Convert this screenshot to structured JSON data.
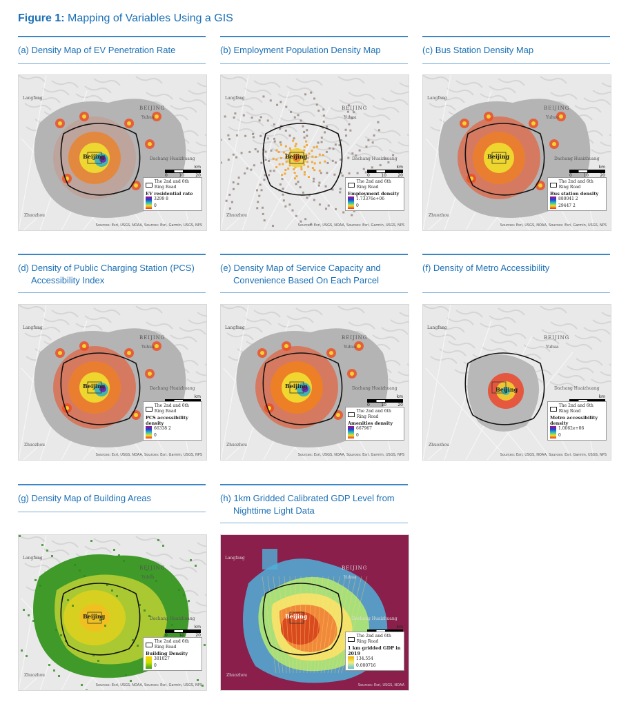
{
  "figure": {
    "label": "Figure 1:",
    "title": " Mapping of Variables Using a GIS"
  },
  "panels": [
    {
      "id": "a",
      "caption_line1": "(a) Density Map of EV Penetration Rate",
      "caption_line2": "",
      "ring_road": "The 2nd and 6th Ring Road",
      "legend_title": "EV residential rate",
      "legend_high": "3299 8",
      "legend_low": "0",
      "credit": "Sources: Esri, USGS, NOAA, Sources: Esri, Garmin, USGS, NPS"
    },
    {
      "id": "b",
      "caption_line1": "(b) Employment Population Density Map",
      "caption_line2": "",
      "ring_road": "The 2nd and 6th Ring Road",
      "legend_title": "Employment density",
      "legend_high": "1.73376e+06",
      "legend_low": "0",
      "credit": "Sources: Esri, USGS, NOAA, Sources: Esri, Garmin, USGS, NPS"
    },
    {
      "id": "c",
      "caption_line1": "(c) Bus Station Density Map",
      "caption_line2": "",
      "ring_road": "The 2nd and 6th Ring Road",
      "legend_title": "Bus station density",
      "legend_high": "880041 2",
      "legend_low": "29447 2",
      "credit": "Sources: Esri, USGS, NOAA, Sources: Esri, Garmin, USGS, NPS"
    },
    {
      "id": "d",
      "caption_line1": "(d) Density of Public Charging Station (PCS)",
      "caption_line2": "Accessibility Index",
      "ring_road": "The 2nd and 6th Ring Road",
      "legend_title": "PCS accessibility density",
      "legend_high": "66338 2",
      "legend_low": "0",
      "credit": "Sources: Esri, USGS, NOAA, Sources: Esri, Garmin, USGS, NPS"
    },
    {
      "id": "e",
      "caption_line1": "(e) Density Map of Service Capacity and",
      "caption_line2": "Convenience Based On Each Parcel",
      "ring_road": "The 2nd and 6th Ring Road",
      "legend_title": "Amenities density",
      "legend_high": "667967",
      "legend_low": "0",
      "credit": "Sources: Esri, USGS, NOAA, Sources: Esri, Garmin, USGS, NPS"
    },
    {
      "id": "f",
      "caption_line1": "(f) Density of Metro Accessibility",
      "caption_line2": "",
      "ring_road": "The 2nd and 6th Ring Road",
      "legend_title": "Metro accessibility density",
      "legend_high": "1.0062e+06",
      "legend_low": "0",
      "credit": "Sources: Esri, USGS, NOAA, Sources: Esri, Garmin, USGS, NPS"
    },
    {
      "id": "g",
      "caption_line1": "(g) Density Map of Building Areas",
      "caption_line2": "",
      "ring_road": "The 2nd and 6th Ring Road",
      "legend_title": "Building Density",
      "legend_high": "381027",
      "legend_low": "0",
      "credit": "Sources: Esri, USGS, NOAA, Sources: Esri, Garmin, USGS, NPS"
    },
    {
      "id": "h",
      "caption_line1": "(h) 1km Gridded Calibrated GDP Level from",
      "caption_line2": "Nighttime Light Data",
      "ring_road": "The 2nd and 6th Ring Road",
      "legend_title": "1 km gridded GDP in 2019",
      "legend_high": "134.554",
      "legend_low": "0.000716",
      "credit": "Sources: Esri, USGS, NOAA"
    }
  ],
  "map_labels": {
    "city": "Beijing",
    "region": "BEIJING",
    "place1": "Yuhua",
    "place2": "Dachang Huaizhuang",
    "place3": "Langfang",
    "place4": "Zhuozhou",
    "scale_unit": "km",
    "scale_0": "0",
    "scale_10": "10",
    "scale_20": "20"
  }
}
